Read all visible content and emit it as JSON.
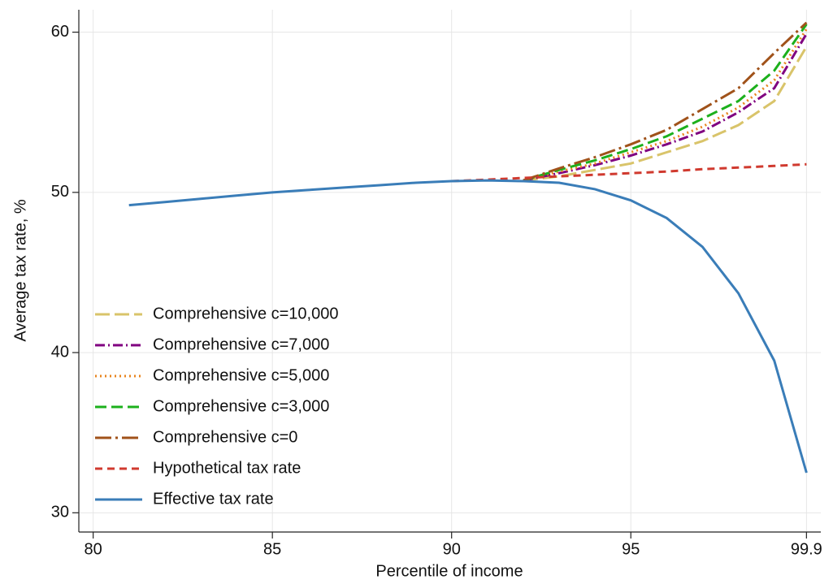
{
  "chart_data": {
    "type": "line",
    "xlabel": "Percentile of income",
    "ylabel": "Average tax rate, %",
    "xlim": [
      79.6,
      100.3
    ],
    "ylim": [
      28.8,
      61.4
    ],
    "xticks": [
      80,
      85,
      90,
      95,
      99.9
    ],
    "yticks": [
      30,
      40,
      50,
      60
    ],
    "grid": true,
    "legend": "lower left",
    "series": [
      {
        "name": "Comprehensive c=10,000",
        "color": "#d9c46a",
        "dash": "longdash",
        "x": [
          92,
          93,
          94,
          95,
          96,
          97,
          98,
          99,
          99.9
        ],
        "values": [
          50.75,
          51.0,
          51.4,
          51.8,
          52.5,
          53.2,
          54.2,
          55.7,
          59.1
        ]
      },
      {
        "name": "Comprehensive c=7,000",
        "color": "#800080",
        "dash": "dashdot",
        "x": [
          92,
          93,
          94,
          95,
          96,
          97,
          98,
          99,
          99.9
        ],
        "values": [
          50.75,
          51.2,
          51.7,
          52.3,
          53.0,
          53.8,
          55.0,
          56.5,
          59.9
        ]
      },
      {
        "name": "Comprehensive c=5,000",
        "color": "#e8851f",
        "dash": "dot",
        "x": [
          92,
          93,
          94,
          95,
          96,
          97,
          98,
          99,
          99.9
        ],
        "values": [
          50.75,
          51.3,
          51.8,
          52.5,
          53.2,
          54.1,
          55.3,
          57.0,
          60.2
        ]
      },
      {
        "name": "Comprehensive c=3,000",
        "color": "#1cb01c",
        "dash": "dash",
        "x": [
          92,
          93,
          94,
          95,
          96,
          97,
          98,
          99,
          99.9
        ],
        "values": [
          50.75,
          51.4,
          52.0,
          52.7,
          53.5,
          54.6,
          55.7,
          57.6,
          60.5
        ]
      },
      {
        "name": "Comprehensive c=0",
        "color": "#a0521a",
        "dash": "longdashdot",
        "x": [
          92,
          93,
          94,
          95,
          96,
          97,
          98,
          99,
          99.9
        ],
        "values": [
          50.75,
          51.5,
          52.2,
          53.0,
          53.9,
          55.2,
          56.5,
          58.7,
          60.6
        ]
      },
      {
        "name": "Hypothetical tax rate",
        "color": "#d03a2f",
        "dash": "shortdash",
        "x": [
          90,
          91,
          92,
          93,
          94,
          95,
          96,
          97,
          98,
          99,
          99.9
        ],
        "values": [
          50.7,
          50.8,
          50.9,
          51.0,
          51.1,
          51.2,
          51.3,
          51.45,
          51.55,
          51.65,
          51.75
        ]
      },
      {
        "name": "Effective tax rate",
        "color": "#3a7db8",
        "dash": "solid",
        "x": [
          81,
          82,
          83,
          84,
          85,
          86,
          87,
          88,
          89,
          90,
          91,
          92,
          93,
          94,
          95,
          96,
          97,
          98,
          99,
          99.9
        ],
        "values": [
          49.2,
          49.4,
          49.6,
          49.8,
          50.0,
          50.15,
          50.3,
          50.45,
          50.6,
          50.7,
          50.75,
          50.7,
          50.6,
          50.2,
          49.5,
          48.4,
          46.6,
          43.7,
          39.5,
          32.5
        ]
      }
    ]
  }
}
